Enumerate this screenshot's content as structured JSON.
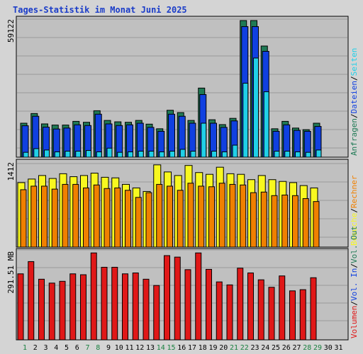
{
  "chart_data": {
    "title": "Tages-Statistik im Monat Juni 2025",
    "days": [
      "1",
      "2",
      "3",
      "4",
      "5",
      "6",
      "7",
      "8",
      "9",
      "10",
      "11",
      "12",
      "13",
      "14",
      "15",
      "16",
      "17",
      "18",
      "19",
      "20",
      "21",
      "22",
      "23",
      "24",
      "25",
      "26",
      "27",
      "28",
      "29",
      "30",
      "31"
    ],
    "weekend_days": [
      "1",
      "7",
      "8",
      "14",
      "15",
      "21",
      "22",
      "28",
      "29"
    ],
    "colors": {
      "background": "#d4d4d4",
      "plot_bg": "#c0c0c0",
      "grid": "#9a9a9a",
      "title": "#1a3cc8",
      "weekday_tick": "#000000",
      "weekend_tick": "#1a8040",
      "anfragen": "#1f7a55",
      "dateien": "#1040e0",
      "seiten": "#20d0e8",
      "besuche": "#f8f820",
      "rechner": "#f08000",
      "volumen": "#e01818"
    },
    "panels": [
      {
        "type": "bar",
        "max_label": "59122",
        "ylim": [
          0,
          59122
        ],
        "legend": [
          {
            "label": "Anfragen",
            "color": "#1f7a55"
          },
          {
            "label": "Dateien",
            "color": "#1040e0"
          },
          {
            "label": "Seiten",
            "color": "#20d0e8"
          }
        ],
        "series": [
          {
            "name": "Anfragen",
            "values": [
              14700,
              18900,
              14400,
              13900,
              13900,
              15500,
              15100,
              20100,
              15900,
              15300,
              15100,
              15900,
              14300,
              12300,
              20300,
              19300,
              15900,
              29900,
              16200,
              14100,
              16800,
              59122,
              59122,
              48100,
              12300,
              15500,
              12600,
              11900,
              14700
            ]
          },
          {
            "name": "Dateien",
            "values": [
              13600,
              17700,
              13000,
              12200,
              12600,
              14000,
              13700,
              18600,
              14400,
              13700,
              14000,
              14700,
              12900,
              11200,
              18600,
              17700,
              14700,
              27100,
              14700,
              12900,
              15700,
              56500,
              56500,
              45800,
              11200,
              14000,
              11600,
              11200,
              13300
            ]
          },
          {
            "name": "Seiten",
            "values": [
              2100,
              3700,
              3100,
              2300,
              2600,
              2600,
              2900,
              2300,
              3900,
              2100,
              2300,
              2600,
              2600,
              2300,
              2600,
              3400,
              2600,
              14700,
              2600,
              2300,
              5200,
              32000,
              42900,
              28300,
              2600,
              2600,
              2300,
              2100,
              3100
            ]
          }
        ]
      },
      {
        "type": "bar",
        "max_label": "1412",
        "ylim": [
          0,
          1412
        ],
        "legend": [
          {
            "label": "Besuche",
            "color": "#f8f820"
          },
          {
            "label": "Rechner",
            "color": "#f08000"
          }
        ],
        "series": [
          {
            "name": "Besuche",
            "values": [
              1090,
              1150,
              1210,
              1160,
              1240,
              1190,
              1210,
              1250,
              1180,
              1170,
              1060,
              1000,
              940,
              1390,
              1270,
              1210,
              1380,
              1260,
              1230,
              1350,
              1240,
              1230,
              1140,
              1210,
              1140,
              1110,
              1090,
              1040,
              1000
            ]
          },
          {
            "name": "Rechner",
            "values": [
              970,
              1030,
              1030,
              980,
              1060,
              1060,
              1000,
              1050,
              990,
              1000,
              960,
              840,
              920,
              1060,
              1030,
              960,
              1080,
              1030,
              1020,
              1080,
              1060,
              1050,
              920,
              930,
              870,
              880,
              870,
              820,
              770
            ]
          }
        ]
      },
      {
        "type": "bar",
        "max_label": "291.51 MB",
        "ylim": [
          0,
          291.51
        ],
        "legend": [
          {
            "label": "Volumen",
            "color": "#e01818"
          },
          {
            "label": "Vol. In",
            "color": "#1040e0"
          },
          {
            "label": "Vol. Out",
            "color": "#1f7a55"
          }
        ],
        "series": [
          {
            "name": "Volumen",
            "values": [
              221,
              262,
              203,
              190,
              196,
              221,
              218,
              291,
              243,
              243,
              221,
              224,
              203,
              182,
              282,
              277,
              235,
              291,
              236,
              194,
              184,
              240,
              224,
              201,
              176,
              214,
              164,
              168,
              208
            ]
          }
        ]
      }
    ]
  }
}
